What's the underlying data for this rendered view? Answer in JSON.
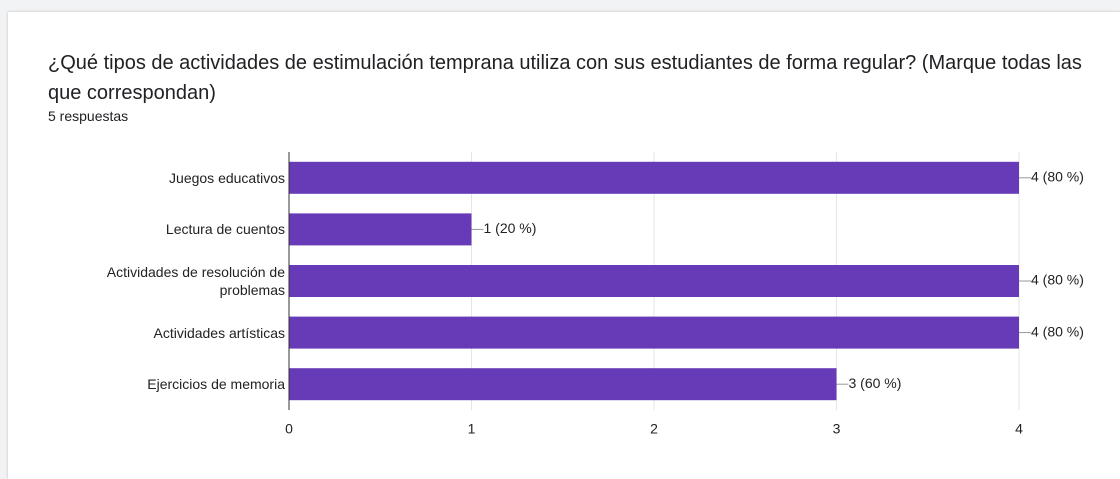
{
  "chart_data": {
    "type": "bar",
    "orientation": "horizontal",
    "title": "¿Qué tipos de actividades de estimulación temprana utiliza con sus estudiantes de forma regular? (Marque todas las que correspondan)",
    "subtitle": "5 respuestas",
    "categories": [
      "Juegos educativos",
      "Lectura de cuentos",
      "Actividades de resolución de problemas",
      "Actividades artísticas",
      "Ejercicios de memoria"
    ],
    "values": [
      4,
      1,
      4,
      4,
      3
    ],
    "value_labels": [
      "4 (80 %)",
      "1 (20 %)",
      "4 (80 %)",
      "4 (80 %)",
      "3 (60 %)"
    ],
    "color": "#673ab7",
    "xlim": [
      0,
      4
    ],
    "xticks": [
      0,
      1,
      2,
      3,
      4
    ],
    "grid": true
  }
}
